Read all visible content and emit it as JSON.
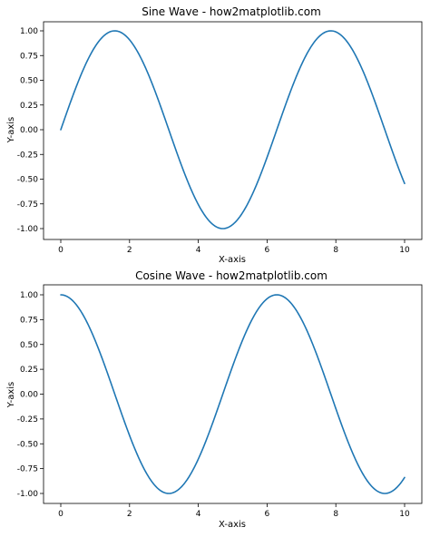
{
  "chart_data": [
    {
      "type": "line",
      "title": "Sine Wave - how2matplotlib.com",
      "xlabel": "X-axis",
      "ylabel": "Y-axis",
      "xlim": [
        0,
        10
      ],
      "ylim": [
        -1.0,
        1.0
      ],
      "xticks": [
        0,
        2,
        4,
        6,
        8,
        10
      ],
      "xtick_labels": [
        "0",
        "2",
        "4",
        "6",
        "8",
        "10"
      ],
      "yticks": [
        1.0,
        0.75,
        0.5,
        0.25,
        0.0,
        -0.25,
        -0.5,
        -0.75,
        -1.0
      ],
      "ytick_labels": [
        "1.00",
        "0.75",
        "0.50",
        "0.25",
        "0.00",
        "-0.25",
        "-0.50",
        "-0.75",
        "-1.00"
      ],
      "grid": false,
      "series": [
        {
          "function": "sin",
          "color": "#1f77b4",
          "x": [
            0,
            0.25,
            0.5,
            0.75,
            1.0,
            1.25,
            1.5,
            1.75,
            2.0,
            2.25,
            2.5,
            2.75,
            3.0,
            3.25,
            3.5,
            3.75,
            4.0,
            4.25,
            4.5,
            4.75,
            5.0,
            5.25,
            5.5,
            5.75,
            6.0,
            6.25,
            6.5,
            6.75,
            7.0,
            7.25,
            7.5,
            7.75,
            8.0,
            8.25,
            8.5,
            8.75,
            9.0,
            9.25,
            9.5,
            9.75,
            10.0
          ],
          "y": [
            0.0,
            0.247,
            0.479,
            0.682,
            0.841,
            0.949,
            0.997,
            0.984,
            0.909,
            0.778,
            0.598,
            0.382,
            0.141,
            -0.108,
            -0.351,
            -0.572,
            -0.757,
            -0.895,
            -0.978,
            -0.999,
            -0.959,
            -0.859,
            -0.706,
            -0.508,
            -0.279,
            -0.033,
            0.215,
            0.45,
            0.657,
            0.823,
            0.938,
            0.994,
            0.989,
            0.923,
            0.798,
            0.624,
            0.412,
            0.174,
            -0.075,
            -0.319,
            -0.544
          ]
        }
      ]
    },
    {
      "type": "line",
      "title": "Cosine Wave - how2matplotlib.com",
      "xlabel": "X-axis",
      "ylabel": "Y-axis",
      "xlim": [
        0,
        10
      ],
      "ylim": [
        -1.0,
        1.0
      ],
      "xticks": [
        0,
        2,
        4,
        6,
        8,
        10
      ],
      "xtick_labels": [
        "0",
        "2",
        "4",
        "6",
        "8",
        "10"
      ],
      "yticks": [
        1.0,
        0.75,
        0.5,
        0.25,
        0.0,
        -0.25,
        -0.5,
        -0.75,
        -1.0
      ],
      "ytick_labels": [
        "1.00",
        "0.75",
        "0.50",
        "0.25",
        "0.00",
        "-0.25",
        "-0.50",
        "-0.75",
        "-1.00"
      ],
      "grid": false,
      "series": [
        {
          "function": "cos",
          "color": "#1f77b4",
          "x": [
            0,
            0.25,
            0.5,
            0.75,
            1.0,
            1.25,
            1.5,
            1.75,
            2.0,
            2.25,
            2.5,
            2.75,
            3.0,
            3.25,
            3.5,
            3.75,
            4.0,
            4.25,
            4.5,
            4.75,
            5.0,
            5.25,
            5.5,
            5.75,
            6.0,
            6.25,
            6.5,
            6.75,
            7.0,
            7.25,
            7.5,
            7.75,
            8.0,
            8.25,
            8.5,
            8.75,
            9.0,
            9.25,
            9.5,
            9.75,
            10.0
          ],
          "y": [
            1.0,
            0.969,
            0.878,
            0.732,
            0.54,
            0.315,
            0.071,
            -0.178,
            -0.416,
            -0.628,
            -0.801,
            -0.924,
            -0.99,
            -0.994,
            -0.936,
            -0.82,
            -0.654,
            -0.446,
            -0.211,
            0.037,
            0.284,
            0.512,
            0.709,
            0.861,
            0.96,
            0.999,
            0.977,
            0.893,
            0.754,
            0.568,
            0.347,
            0.106,
            -0.146,
            -0.385,
            -0.602,
            -0.78,
            -0.911,
            -0.985,
            -0.997,
            -0.948,
            -0.839
          ]
        }
      ]
    }
  ]
}
